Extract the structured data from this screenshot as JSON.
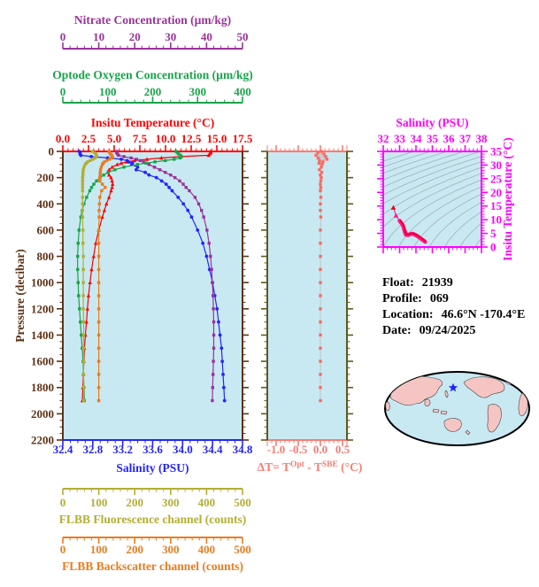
{
  "panel_bg": "#c9e9f2",
  "info_panel": {
    "rows": [
      {
        "label": "Float:",
        "value": "21939"
      },
      {
        "label": "Profile:",
        "value": "069"
      },
      {
        "label": "Location:",
        "value": "46.6°N  -170.4°E"
      },
      {
        "label": "Date:",
        "value": "09/24/2025"
      }
    ]
  },
  "axes": {
    "nitrate": {
      "title": "Nitrate Concentration (µm/kg)",
      "ticks": [
        "0",
        "10",
        "20",
        "30",
        "40",
        "50"
      ],
      "min": 0,
      "max": 50,
      "minor": 2,
      "color": "#993399"
    },
    "oxygen": {
      "title": "Optode Oxygen Concentration (µm/kg)",
      "ticks": [
        "0",
        "100",
        "200",
        "300",
        "400"
      ],
      "min": 0,
      "max": 400,
      "minor": 20,
      "color": "#1aa34a"
    },
    "temperature": {
      "title": "Insitu Temperature (°C)",
      "ticks": [
        "0.0",
        "2.5",
        "5.0",
        "7.5",
        "10.0",
        "12.5",
        "15.0",
        "17.5"
      ],
      "min": 0,
      "max": 17.5,
      "minor": 0.5,
      "color": "#ff0000"
    },
    "pressure": {
      "title": "Pressure (decibar)",
      "ticks": [
        "0",
        "200",
        "400",
        "600",
        "800",
        "1000",
        "1200",
        "1400",
        "1600",
        "1800",
        "2000",
        "2200"
      ],
      "min": 0,
      "max": 2200,
      "minor": 50,
      "color": "#5e3217"
    },
    "salinity": {
      "title": "Salinity (PSU)",
      "ticks": [
        "32.4",
        "32.8",
        "33.2",
        "33.6",
        "34.0",
        "34.4",
        "34.8"
      ],
      "min": 32.4,
      "max": 34.8,
      "minor": 0.1,
      "color": "#2424ff"
    },
    "fluorescence": {
      "title": "FLBB Fluorescence channel (counts)",
      "ticks": [
        "0",
        "100",
        "200",
        "300",
        "400",
        "500"
      ],
      "min": 0,
      "max": 500,
      "minor": 20,
      "color": "#b3ae34"
    },
    "backscatter": {
      "title": "FLBB Backscatter channel (counts)",
      "ticks": [
        "0",
        "100",
        "200",
        "300",
        "400",
        "500"
      ],
      "min": 0,
      "max": 500,
      "minor": 20,
      "color": "#ea7c20"
    },
    "delta_t": {
      "title": "ΔT= TOpt - TSBE (°C)",
      "title_parts": [
        "ΔT= T",
        "Opt",
        " - T",
        "SBE",
        " (°C)"
      ],
      "ticks": [
        "-1.0",
        "-0.5",
        "0.0",
        "0.5"
      ],
      "min": -1.2,
      "max": 0.6,
      "minor": 0.1,
      "color": "#fb7b72",
      "frame_color": "#5a5a20",
      "data_color": "#fa6a62"
    },
    "ts_salinity": {
      "title": "Salinity (PSU)",
      "ticks": [
        "32",
        "33",
        "34",
        "35",
        "36",
        "37",
        "38"
      ],
      "min": 32,
      "max": 38,
      "minor": 0.25,
      "color": "#ff00ff"
    },
    "ts_temperature": {
      "title": "Insitu Temperature (°C)",
      "ticks": [
        "0",
        "5",
        "10",
        "15",
        "20",
        "25",
        "30",
        "35"
      ],
      "min": 0,
      "max": 35,
      "minor": 1,
      "color": "#ff00ff"
    }
  },
  "chart_data": [
    {
      "type": "line",
      "title": "Float profiles vs pressure",
      "ylabel": "Pressure (decibar)",
      "ylim": [
        0,
        2200
      ],
      "grid": false,
      "pressure": [
        0,
        10,
        20,
        30,
        40,
        50,
        60,
        70,
        80,
        90,
        100,
        120,
        140,
        160,
        180,
        200,
        225,
        250,
        275,
        300,
        350,
        400,
        450,
        500,
        600,
        700,
        800,
        900,
        1000,
        1100,
        1200,
        1300,
        1400,
        1500,
        1600,
        1700,
        1800,
        1900
      ],
      "series": [
        {
          "name": "Insitu Temperature (°C)",
          "axis": "temperature",
          "marker": "triangle",
          "values": [
            14.4,
            14.4,
            14.3,
            14.2,
            11.5,
            9.6,
            8.2,
            7.0,
            6.2,
            5.7,
            5.3,
            4.8,
            4.5,
            4.35,
            4.5,
            4.7,
            4.8,
            4.85,
            4.8,
            4.7,
            4.5,
            4.25,
            4.05,
            3.85,
            3.5,
            3.2,
            3.0,
            2.8,
            2.65,
            2.5,
            2.4,
            2.3,
            2.2,
            2.1,
            2.05,
            2.0,
            1.95,
            1.9
          ]
        },
        {
          "name": "Salinity (PSU)",
          "axis": "salinity",
          "marker": "circle",
          "values": [
            32.62,
            32.63,
            32.63,
            32.64,
            32.78,
            33.0,
            33.18,
            33.26,
            33.28,
            33.33,
            33.32,
            33.4,
            33.38,
            33.5,
            33.55,
            33.65,
            33.72,
            33.78,
            33.82,
            33.86,
            33.94,
            34.01,
            34.07,
            34.12,
            34.2,
            34.27,
            34.32,
            34.36,
            34.4,
            34.43,
            34.46,
            34.48,
            34.5,
            34.52,
            34.53,
            34.54,
            34.55,
            34.56
          ]
        },
        {
          "name": "Nitrate Concentration (µm/kg)",
          "axis": "nitrate",
          "marker": "square",
          "values": [
            15,
            15,
            15.2,
            15.5,
            17,
            19,
            20.5,
            21.5,
            22.5,
            23.2,
            24,
            25.5,
            27,
            28.5,
            30,
            31.2,
            32.5,
            33.5,
            34.3,
            35.2,
            36.8,
            37.8,
            38.6,
            39.2,
            40.1,
            40.7,
            41.1,
            41.4,
            41.6,
            41.8,
            41.9,
            42,
            42,
            42,
            41.9,
            41.8,
            41.7,
            41.6
          ]
        },
        {
          "name": "Optode Oxygen Concentration (µm/kg)",
          "axis": "oxygen",
          "marker": "square",
          "values": [
            252,
            255,
            258,
            262,
            264,
            261,
            248,
            228,
            205,
            185,
            166,
            136,
            116,
            101,
            91,
            83,
            75,
            69,
            64,
            60,
            53,
            47,
            43,
            40,
            36,
            34,
            33,
            33,
            34,
            35,
            37,
            39,
            41,
            43,
            45,
            46,
            47,
            48
          ]
        },
        {
          "name": "FLBB Fluorescence channel (counts)",
          "axis": "fluorescence",
          "marker": "square",
          "values": [
            82,
            88,
            92,
            94,
            93,
            90,
            84,
            76,
            69,
            65,
            62,
            59,
            57,
            56,
            56,
            55,
            55,
            55,
            55,
            55,
            55,
            55,
            55,
            55,
            56,
            56,
            57,
            57,
            57,
            57,
            57,
            58,
            58,
            58,
            58,
            58,
            58,
            58
          ]
        },
        {
          "name": "FLBB Backscatter channel (counts)",
          "axis": "backscatter",
          "marker": "square",
          "values": [
            128,
            130,
            133,
            136,
            138,
            136,
            130,
            122,
            116,
            112,
            110,
            107,
            105,
            104,
            104,
            103,
            103,
            110,
            118,
            108,
            103,
            102,
            101,
            101,
            100,
            100,
            100,
            100,
            100,
            100,
            100,
            100,
            100,
            100,
            100,
            100,
            100,
            100
          ]
        }
      ]
    },
    {
      "type": "line",
      "title": "Optode minus SBE temperature difference vs pressure",
      "xlabel": "ΔT= TOpt - TSBE (°C)",
      "xlim": [
        -1.2,
        0.6
      ],
      "xticks": [
        -1.0,
        -0.5,
        0.0,
        0.5
      ],
      "ylim": [
        0,
        2200
      ],
      "pressure_same_as_chart": 0,
      "values": [
        0.02,
        -0.06,
        0.08,
        -0.1,
        0.12,
        -0.05,
        0.15,
        -0.02,
        0.06,
        -0.03,
        0.04,
        0.02,
        -0.02,
        0.03,
        0,
        0.02,
        0.01,
        0,
        0.01,
        0,
        0.01,
        0,
        0,
        0.01,
        0,
        0,
        0,
        0,
        0,
        0,
        0,
        0,
        0,
        0,
        0,
        0,
        0,
        0
      ]
    },
    {
      "type": "scatter",
      "title": "T-S diagram",
      "xlabel": "Salinity (PSU)",
      "ylabel": "Insitu Temperature (°C)",
      "xlim": [
        32,
        38
      ],
      "ylim": [
        0,
        35
      ],
      "points_source": "salinity and temperature series of chart 0 paired by depth",
      "isopycnal_contours": "sigma-t from 19 to 30.25 step 0.75, gray",
      "line_color": "#ff1493",
      "accent_color": "#e60000"
    }
  ],
  "map": {
    "description": "global map, Pacific-centered, float position marked",
    "ocean_color": "#c9e9f2",
    "land_color": "#f5c5c3",
    "outline_color": "#000000",
    "star_color": "#2222ff"
  }
}
